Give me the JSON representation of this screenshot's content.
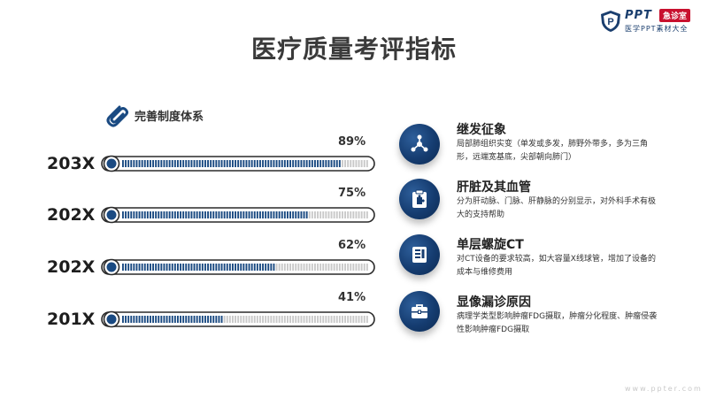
{
  "logo": {
    "brand": "PPT",
    "badge": "急诊室",
    "tagline": "医学PPT素材大全"
  },
  "title": "医疗质量考评指标",
  "subtitle": "完善制度体系",
  "bars": [
    {
      "year": "203X",
      "percent_label": "89%",
      "value": 0.89
    },
    {
      "year": "202X",
      "percent_label": "75%",
      "value": 0.75
    },
    {
      "year": "202X",
      "percent_label": "62%",
      "value": 0.62
    },
    {
      "year": "201X",
      "percent_label": "41%",
      "value": 0.41
    }
  ],
  "features": [
    {
      "icon": "molecule-icon",
      "title": "继发征象",
      "desc": "局部肺组织实变（单发或多发，肺野外带多，多为三角形，远端宽基底，尖部朝向肺门）"
    },
    {
      "icon": "puzzle-clipboard-icon",
      "title": "肝脏及其血管",
      "desc": "分为肝动脉、门脉、肝静脉的分别显示，对外科手术有极大的支持帮助"
    },
    {
      "icon": "document-icon",
      "title": "单层螺旋CT",
      "desc": "对CT设备的要求较高，如大容量X线球管，增加了设备的成本与维修费用"
    },
    {
      "icon": "briefcase-icon",
      "title": "显像漏诊原因",
      "desc": "病理学类型影响肿瘤FDG摄取，肿瘤分化程度、肿瘤侵袭性影响肿瘤FDG摄取"
    }
  ],
  "colors": {
    "accent": "#1a4a82",
    "title": "#3a3a3a",
    "stripe_track": "#c9c9c9",
    "badge": "#c8102e"
  },
  "watermark": "www.ppter.com"
}
